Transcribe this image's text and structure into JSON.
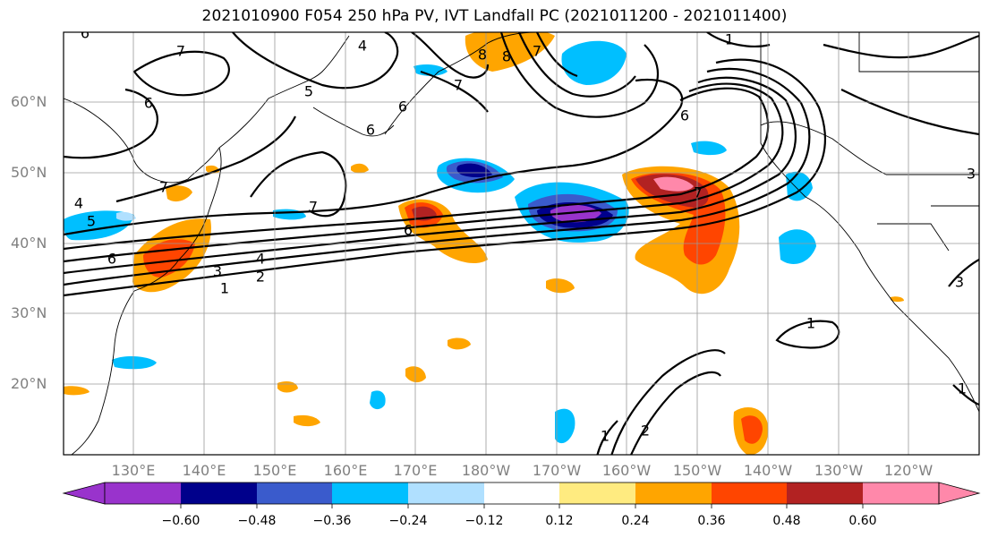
{
  "title": "2021010900 F054 250 hPa PV, IVT Landfall PC (2021011200 - 2021011400)",
  "axes": {
    "lat_labels": [
      "60°N",
      "50°N",
      "40°N",
      "30°N",
      "20°N"
    ],
    "lon_labels": [
      "130°E",
      "140°E",
      "150°E",
      "160°E",
      "170°E",
      "180°W",
      "170°W",
      "160°W",
      "150°W",
      "140°W",
      "130°W",
      "120°W"
    ]
  },
  "colorbar": {
    "tick_labels": [
      "−0.60",
      "−0.48",
      "−0.36",
      "−0.24",
      "−0.12",
      "0.12",
      "0.24",
      "0.36",
      "0.48",
      "0.60"
    ],
    "colors": [
      "#9933cc",
      "#00008b",
      "#3a5bcc",
      "#00bfff",
      "#b0e0ff",
      "#ffffff",
      "#ffeb80",
      "#ffa500",
      "#ff4500",
      "#b22222",
      "#ff88aa"
    ]
  },
  "contour_labels": [
    "6",
    "7",
    "4",
    "7",
    "5",
    "6",
    "6",
    "7",
    "6",
    "6",
    "1",
    "7",
    "7",
    "5",
    "4",
    "6",
    "6",
    "3",
    "4",
    "2",
    "1",
    "1",
    "1",
    "2",
    "1",
    "3",
    "3",
    "8",
    "8",
    "7"
  ]
}
